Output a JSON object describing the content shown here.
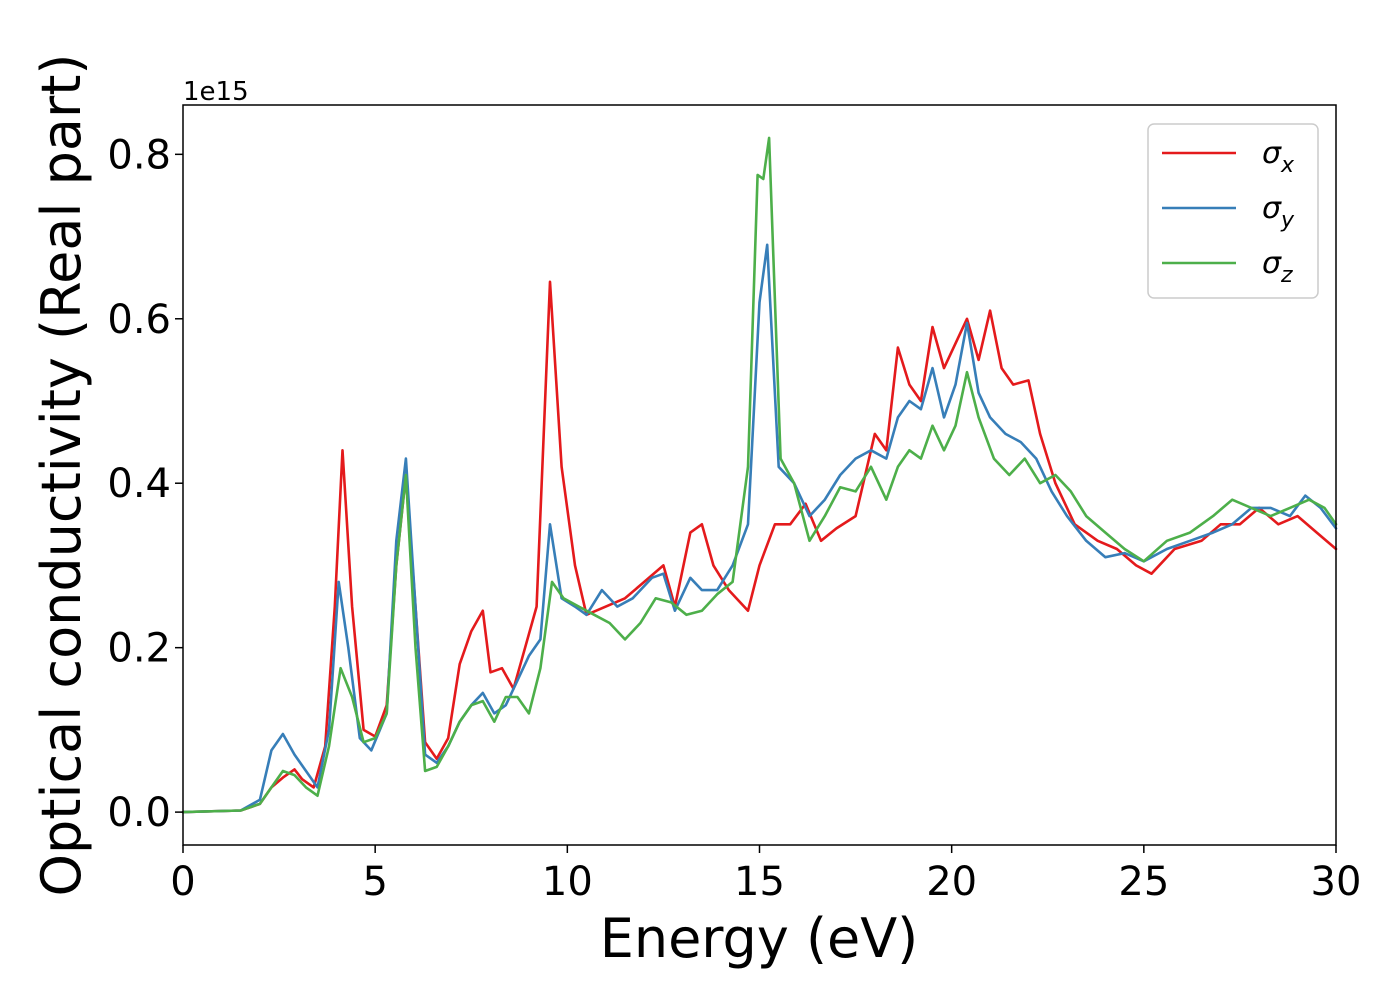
{
  "chart_data": {
    "type": "line",
    "title": "",
    "xlabel": "Energy (eV)",
    "ylabel": "Optical conductivity (Real part)",
    "y_offset_label": "1e15",
    "y_scale": 1000000000000000.0,
    "xlim": [
      0,
      30
    ],
    "ylim": [
      -0.04,
      0.86
    ],
    "x_ticks": [
      0,
      5,
      10,
      15,
      20,
      25,
      30
    ],
    "x_tick_labels": [
      "0",
      "5",
      "10",
      "15",
      "20",
      "25",
      "30"
    ],
    "y_ticks": [
      0.0,
      0.2,
      0.4,
      0.6,
      0.8
    ],
    "y_tick_labels": [
      "0.0",
      "0.2",
      "0.4",
      "0.6",
      "0.8"
    ],
    "grid": false,
    "legend_position": "top-right",
    "series": [
      {
        "name": "σx",
        "legend_main": "σ",
        "legend_sub": "x",
        "color": "#e41a1c",
        "points": [
          [
            0,
            0
          ],
          [
            1.5,
            0.002
          ],
          [
            2,
            0.01
          ],
          [
            2.3,
            0.03
          ],
          [
            2.6,
            0.042
          ],
          [
            2.9,
            0.052
          ],
          [
            3.1,
            0.04
          ],
          [
            3.4,
            0.03
          ],
          [
            3.7,
            0.08
          ],
          [
            3.95,
            0.25
          ],
          [
            4.15,
            0.44
          ],
          [
            4.4,
            0.25
          ],
          [
            4.7,
            0.1
          ],
          [
            5.0,
            0.092
          ],
          [
            5.3,
            0.13
          ],
          [
            5.55,
            0.3
          ],
          [
            5.8,
            0.41
          ],
          [
            6.05,
            0.25
          ],
          [
            6.3,
            0.085
          ],
          [
            6.6,
            0.065
          ],
          [
            6.9,
            0.09
          ],
          [
            7.2,
            0.18
          ],
          [
            7.5,
            0.22
          ],
          [
            7.8,
            0.245
          ],
          [
            8.0,
            0.17
          ],
          [
            8.3,
            0.175
          ],
          [
            8.6,
            0.15
          ],
          [
            8.9,
            0.2
          ],
          [
            9.2,
            0.25
          ],
          [
            9.55,
            0.645
          ],
          [
            9.85,
            0.42
          ],
          [
            10.2,
            0.3
          ],
          [
            10.5,
            0.24
          ],
          [
            11.0,
            0.25
          ],
          [
            11.5,
            0.26
          ],
          [
            12.0,
            0.28
          ],
          [
            12.5,
            0.3
          ],
          [
            12.8,
            0.25
          ],
          [
            13.2,
            0.34
          ],
          [
            13.5,
            0.35
          ],
          [
            13.8,
            0.3
          ],
          [
            14.2,
            0.27
          ],
          [
            14.7,
            0.245
          ],
          [
            15.0,
            0.3
          ],
          [
            15.4,
            0.35
          ],
          [
            15.8,
            0.35
          ],
          [
            16.2,
            0.375
          ],
          [
            16.6,
            0.33
          ],
          [
            17.0,
            0.345
          ],
          [
            17.5,
            0.36
          ],
          [
            18.0,
            0.46
          ],
          [
            18.3,
            0.44
          ],
          [
            18.6,
            0.565
          ],
          [
            18.9,
            0.52
          ],
          [
            19.2,
            0.5
          ],
          [
            19.5,
            0.59
          ],
          [
            19.8,
            0.54
          ],
          [
            20.1,
            0.57
          ],
          [
            20.4,
            0.6
          ],
          [
            20.7,
            0.55
          ],
          [
            21.0,
            0.61
          ],
          [
            21.3,
            0.54
          ],
          [
            21.6,
            0.52
          ],
          [
            22.0,
            0.525
          ],
          [
            22.3,
            0.46
          ],
          [
            22.7,
            0.4
          ],
          [
            23.2,
            0.35
          ],
          [
            23.8,
            0.33
          ],
          [
            24.3,
            0.32
          ],
          [
            24.8,
            0.3
          ],
          [
            25.2,
            0.29
          ],
          [
            25.8,
            0.32
          ],
          [
            26.5,
            0.33
          ],
          [
            27.0,
            0.35
          ],
          [
            27.5,
            0.35
          ],
          [
            28.0,
            0.37
          ],
          [
            28.5,
            0.35
          ],
          [
            29.0,
            0.36
          ],
          [
            29.5,
            0.34
          ],
          [
            30.0,
            0.32
          ]
        ]
      },
      {
        "name": "σy",
        "legend_main": "σ",
        "legend_sub": "y",
        "color": "#377eb8",
        "points": [
          [
            0,
            0
          ],
          [
            1.5,
            0.002
          ],
          [
            2,
            0.015
          ],
          [
            2.3,
            0.075
          ],
          [
            2.6,
            0.095
          ],
          [
            2.9,
            0.07
          ],
          [
            3.2,
            0.05
          ],
          [
            3.5,
            0.03
          ],
          [
            3.8,
            0.1
          ],
          [
            4.05,
            0.28
          ],
          [
            4.3,
            0.2
          ],
          [
            4.6,
            0.09
          ],
          [
            4.9,
            0.075
          ],
          [
            5.3,
            0.12
          ],
          [
            5.55,
            0.33
          ],
          [
            5.8,
            0.43
          ],
          [
            6.05,
            0.25
          ],
          [
            6.3,
            0.07
          ],
          [
            6.6,
            0.06
          ],
          [
            6.9,
            0.08
          ],
          [
            7.2,
            0.11
          ],
          [
            7.5,
            0.13
          ],
          [
            7.8,
            0.145
          ],
          [
            8.1,
            0.12
          ],
          [
            8.4,
            0.13
          ],
          [
            8.7,
            0.16
          ],
          [
            9.0,
            0.19
          ],
          [
            9.3,
            0.21
          ],
          [
            9.55,
            0.35
          ],
          [
            9.85,
            0.26
          ],
          [
            10.2,
            0.25
          ],
          [
            10.5,
            0.24
          ],
          [
            10.9,
            0.27
          ],
          [
            11.3,
            0.25
          ],
          [
            11.7,
            0.26
          ],
          [
            12.2,
            0.285
          ],
          [
            12.5,
            0.29
          ],
          [
            12.8,
            0.245
          ],
          [
            13.2,
            0.285
          ],
          [
            13.5,
            0.27
          ],
          [
            13.9,
            0.27
          ],
          [
            14.3,
            0.3
          ],
          [
            14.7,
            0.35
          ],
          [
            15.0,
            0.62
          ],
          [
            15.2,
            0.69
          ],
          [
            15.5,
            0.42
          ],
          [
            15.9,
            0.4
          ],
          [
            16.3,
            0.36
          ],
          [
            16.7,
            0.38
          ],
          [
            17.1,
            0.41
          ],
          [
            17.5,
            0.43
          ],
          [
            17.9,
            0.44
          ],
          [
            18.3,
            0.43
          ],
          [
            18.6,
            0.48
          ],
          [
            18.9,
            0.5
          ],
          [
            19.2,
            0.49
          ],
          [
            19.5,
            0.54
          ],
          [
            19.8,
            0.48
          ],
          [
            20.1,
            0.52
          ],
          [
            20.4,
            0.595
          ],
          [
            20.7,
            0.51
          ],
          [
            21.0,
            0.48
          ],
          [
            21.4,
            0.46
          ],
          [
            21.8,
            0.45
          ],
          [
            22.2,
            0.43
          ],
          [
            22.6,
            0.39
          ],
          [
            23.0,
            0.36
          ],
          [
            23.5,
            0.33
          ],
          [
            24.0,
            0.31
          ],
          [
            24.5,
            0.315
          ],
          [
            25.0,
            0.305
          ],
          [
            25.6,
            0.32
          ],
          [
            26.2,
            0.33
          ],
          [
            26.8,
            0.34
          ],
          [
            27.3,
            0.35
          ],
          [
            27.8,
            0.37
          ],
          [
            28.3,
            0.37
          ],
          [
            28.8,
            0.36
          ],
          [
            29.2,
            0.385
          ],
          [
            29.6,
            0.37
          ],
          [
            30.0,
            0.345
          ]
        ]
      },
      {
        "name": "σz",
        "legend_main": "σ",
        "legend_sub": "z",
        "color": "#4daf4a",
        "points": [
          [
            0,
            0
          ],
          [
            1.5,
            0.002
          ],
          [
            2,
            0.01
          ],
          [
            2.3,
            0.03
          ],
          [
            2.6,
            0.05
          ],
          [
            2.9,
            0.045
          ],
          [
            3.2,
            0.03
          ],
          [
            3.5,
            0.02
          ],
          [
            3.8,
            0.08
          ],
          [
            4.1,
            0.175
          ],
          [
            4.4,
            0.14
          ],
          [
            4.7,
            0.085
          ],
          [
            5.0,
            0.09
          ],
          [
            5.3,
            0.12
          ],
          [
            5.55,
            0.3
          ],
          [
            5.8,
            0.41
          ],
          [
            6.05,
            0.2
          ],
          [
            6.3,
            0.05
          ],
          [
            6.6,
            0.055
          ],
          [
            6.9,
            0.08
          ],
          [
            7.2,
            0.11
          ],
          [
            7.5,
            0.13
          ],
          [
            7.8,
            0.135
          ],
          [
            8.1,
            0.11
          ],
          [
            8.4,
            0.14
          ],
          [
            8.7,
            0.14
          ],
          [
            9.0,
            0.12
          ],
          [
            9.3,
            0.175
          ],
          [
            9.6,
            0.28
          ],
          [
            9.9,
            0.26
          ],
          [
            10.3,
            0.25
          ],
          [
            10.7,
            0.24
          ],
          [
            11.1,
            0.23
          ],
          [
            11.5,
            0.21
          ],
          [
            11.9,
            0.23
          ],
          [
            12.3,
            0.26
          ],
          [
            12.7,
            0.255
          ],
          [
            13.1,
            0.24
          ],
          [
            13.5,
            0.245
          ],
          [
            13.9,
            0.265
          ],
          [
            14.3,
            0.28
          ],
          [
            14.7,
            0.42
          ],
          [
            14.95,
            0.775
          ],
          [
            15.1,
            0.77
          ],
          [
            15.25,
            0.82
          ],
          [
            15.55,
            0.43
          ],
          [
            15.9,
            0.4
          ],
          [
            16.3,
            0.33
          ],
          [
            16.7,
            0.36
          ],
          [
            17.1,
            0.395
          ],
          [
            17.5,
            0.39
          ],
          [
            17.9,
            0.42
          ],
          [
            18.3,
            0.38
          ],
          [
            18.6,
            0.42
          ],
          [
            18.9,
            0.44
          ],
          [
            19.2,
            0.43
          ],
          [
            19.5,
            0.47
          ],
          [
            19.8,
            0.44
          ],
          [
            20.1,
            0.47
          ],
          [
            20.4,
            0.535
          ],
          [
            20.7,
            0.48
          ],
          [
            21.1,
            0.43
          ],
          [
            21.5,
            0.41
          ],
          [
            21.9,
            0.43
          ],
          [
            22.3,
            0.4
          ],
          [
            22.7,
            0.41
          ],
          [
            23.1,
            0.39
          ],
          [
            23.5,
            0.36
          ],
          [
            24.0,
            0.34
          ],
          [
            24.5,
            0.32
          ],
          [
            25.0,
            0.305
          ],
          [
            25.6,
            0.33
          ],
          [
            26.2,
            0.34
          ],
          [
            26.8,
            0.36
          ],
          [
            27.3,
            0.38
          ],
          [
            27.8,
            0.37
          ],
          [
            28.3,
            0.36
          ],
          [
            28.8,
            0.37
          ],
          [
            29.3,
            0.38
          ],
          [
            29.7,
            0.37
          ],
          [
            30.0,
            0.35
          ]
        ]
      }
    ]
  }
}
